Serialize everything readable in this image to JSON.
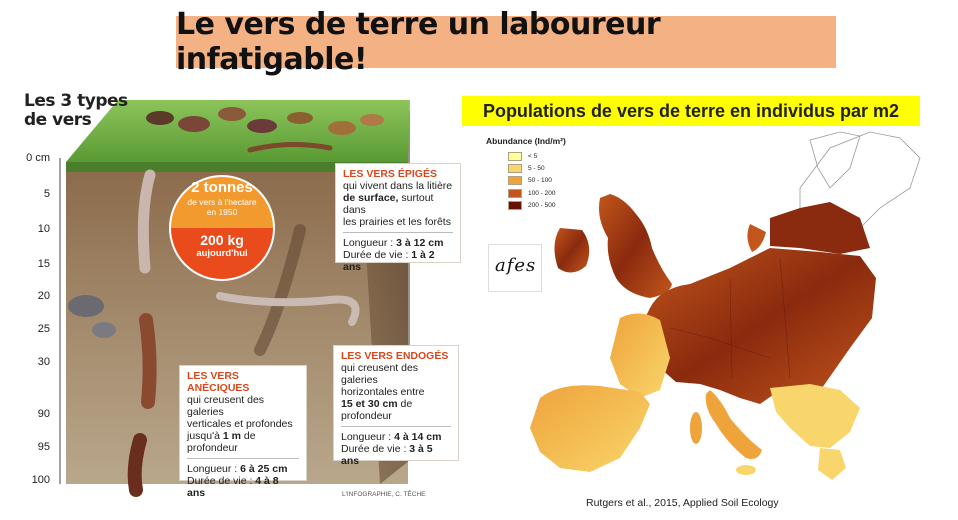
{
  "title": "Le vers de terre un laboureur infatigable!",
  "infographic": {
    "heading_line1": "Les 3 types",
    "heading_line2": "de vers",
    "depth_scale": [
      "0 cm",
      "5",
      "10",
      "15",
      "20",
      "25",
      "30",
      "90",
      "95",
      "100"
    ],
    "badge": {
      "top_value": "2 tonnes",
      "top_line2": "de vers à l'hectare",
      "top_line3": "en 1950",
      "bottom_value": "200 kg",
      "bottom_line2": "aujourd'hui"
    },
    "epiges": {
      "head": "LES VERS ÉPIGÉS",
      "line1": "qui vivent dans la litière",
      "line2_bold": "de surface,",
      "line2_rest": " surtout dans",
      "line3": "les prairies et les forêts",
      "length_label": "Longueur : ",
      "length_value": "3 à 12 cm",
      "life_label": "Durée de vie : ",
      "life_value": "1 à 2 ans"
    },
    "endoges": {
      "head": "LES VERS ENDOGÉS",
      "line1": "qui creusent des galeries",
      "line2": "horizontales entre",
      "line3_bold": "15 et 30 cm",
      "line3_rest": " de",
      "line4": "profondeur",
      "length_label": "Longueur : ",
      "length_value": "4 à 14 cm",
      "life_label": "Durée de vie : ",
      "life_value": "3 à 5 ans"
    },
    "aneciques": {
      "head": "LES VERS ANÉCIQUES",
      "line1": "qui creusent des galeries",
      "line2": "verticales et profondes",
      "line3_pre": "jusqu'à ",
      "line3_bold": "1 m",
      "line3_rest": " de",
      "line4": "profondeur",
      "length_label": "Longueur : ",
      "length_value": "6 à 25 cm",
      "life_label": "Durée de vie : ",
      "life_value": "4 à 8 ans"
    },
    "credit": "L'INFOGRAPHIE, C. TÊCHE"
  },
  "map": {
    "title": "Populations de vers de terre en individus par m2",
    "legend_title": "Abundance (Ind/m²)",
    "legend": [
      {
        "label": "< 5",
        "color": "#ffff99"
      },
      {
        "label": "5 - 50",
        "color": "#f9d66b"
      },
      {
        "label": "50 - 100",
        "color": "#eea33b"
      },
      {
        "label": "100 - 200",
        "color": "#c2561c"
      },
      {
        "label": "200 - 500",
        "color": "#6b0f05"
      }
    ],
    "logo_text": "afes",
    "credit": "Rutgers et al., 2015, Applied Soil Ecology"
  }
}
